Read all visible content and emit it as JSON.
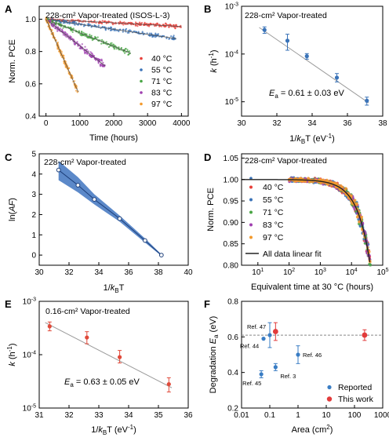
{
  "chart_data": [
    {
      "panel": "A",
      "type": "scatter",
      "title": "228-cm² Vapor-treated (ISOS-L-3)",
      "xlabel": "Time (hours)",
      "ylabel": "Norm. PCE",
      "xlim": [
        -200,
        4200
      ],
      "ylim": [
        0.4,
        1.08
      ],
      "xticks": [
        0,
        500,
        1000,
        1500,
        2000,
        2500,
        3000,
        3500,
        4000
      ],
      "yticks": [
        0.4,
        0.6,
        0.8,
        1.0
      ],
      "legend": "bottom-right",
      "series": [
        {
          "name": "40 °C",
          "color": "#e8403a",
          "x_end": 4000,
          "fit": [
            [
              0,
              1.0
            ],
            [
              4000,
              0.955
            ]
          ]
        },
        {
          "name": "55 °C",
          "color": "#3a73b8",
          "x_end": 3850,
          "fit": [
            [
              0,
              1.0
            ],
            [
              3850,
              0.88
            ]
          ]
        },
        {
          "name": "71 °C",
          "color": "#4aa645",
          "x_end": 2500,
          "fit": [
            [
              0,
              1.0
            ],
            [
              2500,
              0.79
            ]
          ]
        },
        {
          "name": "83 °C",
          "color": "#a040b0",
          "x_end": 1750,
          "fit": [
            [
              0,
              1.0
            ],
            [
              1750,
              0.71
            ]
          ]
        },
        {
          "name": "97 °C",
          "color": "#f39a2d",
          "x_end": 950,
          "fit": [
            [
              0,
              1.0
            ],
            [
              950,
              0.55
            ]
          ]
        }
      ]
    },
    {
      "panel": "B",
      "type": "scatter",
      "title": "228-cm² Vapor-treated",
      "xlabel": "1/kBT (eV⁻¹)",
      "ylabel": "k (h⁻¹)",
      "yscale": "log",
      "xlim": [
        30,
        38
      ],
      "ylim": [
        5e-06,
        0.001
      ],
      "xticks": [
        30,
        32,
        34,
        36,
        38
      ],
      "annotation": "Ea = 0.61 ± 0.03 eV",
      "points": [
        {
          "x": 31.3,
          "y": 0.00032,
          "err_lo": 0.00027,
          "err_hi": 0.00037
        },
        {
          "x": 32.6,
          "y": 0.00019,
          "err_lo": 0.00012,
          "err_hi": 0.00026
        },
        {
          "x": 33.7,
          "y": 9e-05,
          "err_lo": 7.8e-05,
          "err_hi": 0.000102
        },
        {
          "x": 35.4,
          "y": 3.2e-05,
          "err_lo": 2.6e-05,
          "err_hi": 3.9e-05
        },
        {
          "x": 37.1,
          "y": 1.05e-05,
          "err_lo": 8.5e-06,
          "err_hi": 1.25e-05
        }
      ],
      "fit_line": [
        [
          31.0,
          0.00036
        ],
        [
          37.2,
          9.5e-06
        ]
      ]
    },
    {
      "panel": "C",
      "type": "scatter",
      "title": "228-cm² Vapor-treated",
      "xlabel": "1/kBT (eV⁻¹)",
      "ylabel": "ln(AF)",
      "xlim": [
        30,
        40
      ],
      "ylim": [
        -0.5,
        5
      ],
      "xticks": [
        30,
        32,
        34,
        36,
        38,
        40
      ],
      "yticks": [
        0,
        1,
        2,
        3,
        4,
        5
      ],
      "points": [
        {
          "x": 31.3,
          "y": 4.2
        },
        {
          "x": 32.6,
          "y": 3.45
        },
        {
          "x": 33.7,
          "y": 2.75
        },
        {
          "x": 35.4,
          "y": 1.8
        },
        {
          "x": 37.1,
          "y": 0.72
        },
        {
          "x": 38.2,
          "y": 0.0
        }
      ],
      "band": [
        [
          31.3,
          3.7,
          4.65
        ],
        [
          32.6,
          3.1,
          3.85
        ],
        [
          33.7,
          2.5,
          3.0
        ],
        [
          35.4,
          1.65,
          1.95
        ],
        [
          37.1,
          0.62,
          0.82
        ],
        [
          38.2,
          -0.04,
          0.04
        ]
      ]
    },
    {
      "panel": "D",
      "type": "scatter",
      "title": "228-cm² Vapor-treated",
      "xlabel": "Equivalent time at 30 °C (hours)",
      "ylabel": "Norm. PCE",
      "xscale": "log",
      "xlim": [
        3,
        100000.0
      ],
      "ylim": [
        0.8,
        1.06
      ],
      "xticks": [
        10,
        100,
        1000,
        10000,
        100000
      ],
      "xticklabels": [
        "10¹",
        "10²",
        "10³",
        "10⁴",
        "10⁵"
      ],
      "yticks": [
        0.8,
        0.85,
        0.9,
        0.95,
        1.0,
        1.05
      ],
      "legend": "left",
      "series": [
        {
          "name": "40 °C",
          "color": "#e8403a"
        },
        {
          "name": "55 °C",
          "color": "#3a73b8"
        },
        {
          "name": "71 °C",
          "color": "#4aa645"
        },
        {
          "name": "83 °C",
          "color": "#a040b0"
        },
        {
          "name": "97 °C",
          "color": "#f39a2d"
        }
      ],
      "fit_label": "All data linear fit"
    },
    {
      "panel": "E",
      "type": "scatter",
      "title": "0.16-cm² Vapor-treated",
      "xlabel": "1/kBT (eV⁻¹)",
      "ylabel": "k (h⁻¹)",
      "yscale": "log",
      "xlim": [
        31,
        36
      ],
      "ylim": [
        1e-05,
        0.001
      ],
      "xticks": [
        31,
        32,
        33,
        34,
        35,
        36
      ],
      "annotation": "Ea = 0.63 ± 0.05 eV",
      "points": [
        {
          "x": 31.35,
          "y": 0.00034,
          "err_lo": 0.00028,
          "err_hi": 0.00041
        },
        {
          "x": 32.6,
          "y": 0.00021,
          "err_lo": 0.00016,
          "err_hi": 0.00027
        },
        {
          "x": 33.7,
          "y": 9e-05,
          "err_lo": 7e-05,
          "err_hi": 0.00012
        },
        {
          "x": 35.35,
          "y": 2.8e-05,
          "err_lo": 2e-05,
          "err_hi": 3.7e-05
        }
      ],
      "fit_line": [
        [
          31.2,
          0.0004
        ],
        [
          35.45,
          2.4e-05
        ]
      ]
    },
    {
      "panel": "F",
      "type": "scatter",
      "title": "",
      "xlabel": "Area (cm²)",
      "ylabel": "Degradation Ea (eV)",
      "xscale": "log",
      "xlim": [
        0.01,
        1000
      ],
      "ylim": [
        0.2,
        0.8
      ],
      "xticks": [
        0.01,
        0.1,
        1,
        10,
        100,
        1000
      ],
      "xticklabels": [
        "0.01",
        "0.1",
        "1",
        "10",
        "100",
        "1000"
      ],
      "yticks": [
        0.2,
        0.4,
        0.6,
        0.8
      ],
      "reference_line": 0.61,
      "legend": "bottom-right",
      "series": [
        {
          "name": "Reported",
          "color": "#3a7dc4",
          "points": [
            {
              "x": 0.05,
              "y": 0.39,
              "err": 0.02,
              "label": "Ref. 45"
            },
            {
              "x": 0.06,
              "y": 0.59,
              "err": 0.0,
              "label": "Ref. 44"
            },
            {
              "x": 0.1,
              "y": 0.61,
              "err": 0.07,
              "label": "Ref. 47"
            },
            {
              "x": 0.16,
              "y": 0.43,
              "err": 0.02,
              "label": "Ref. 3"
            },
            {
              "x": 1.0,
              "y": 0.5,
              "err": 0.05,
              "label": "Ref. 46"
            }
          ]
        },
        {
          "name": "This work",
          "color": "#e23b3b",
          "points": [
            {
              "x": 0.16,
              "y": 0.63,
              "err": 0.05
            },
            {
              "x": 228,
              "y": 0.61,
              "err": 0.03
            }
          ]
        }
      ]
    }
  ]
}
